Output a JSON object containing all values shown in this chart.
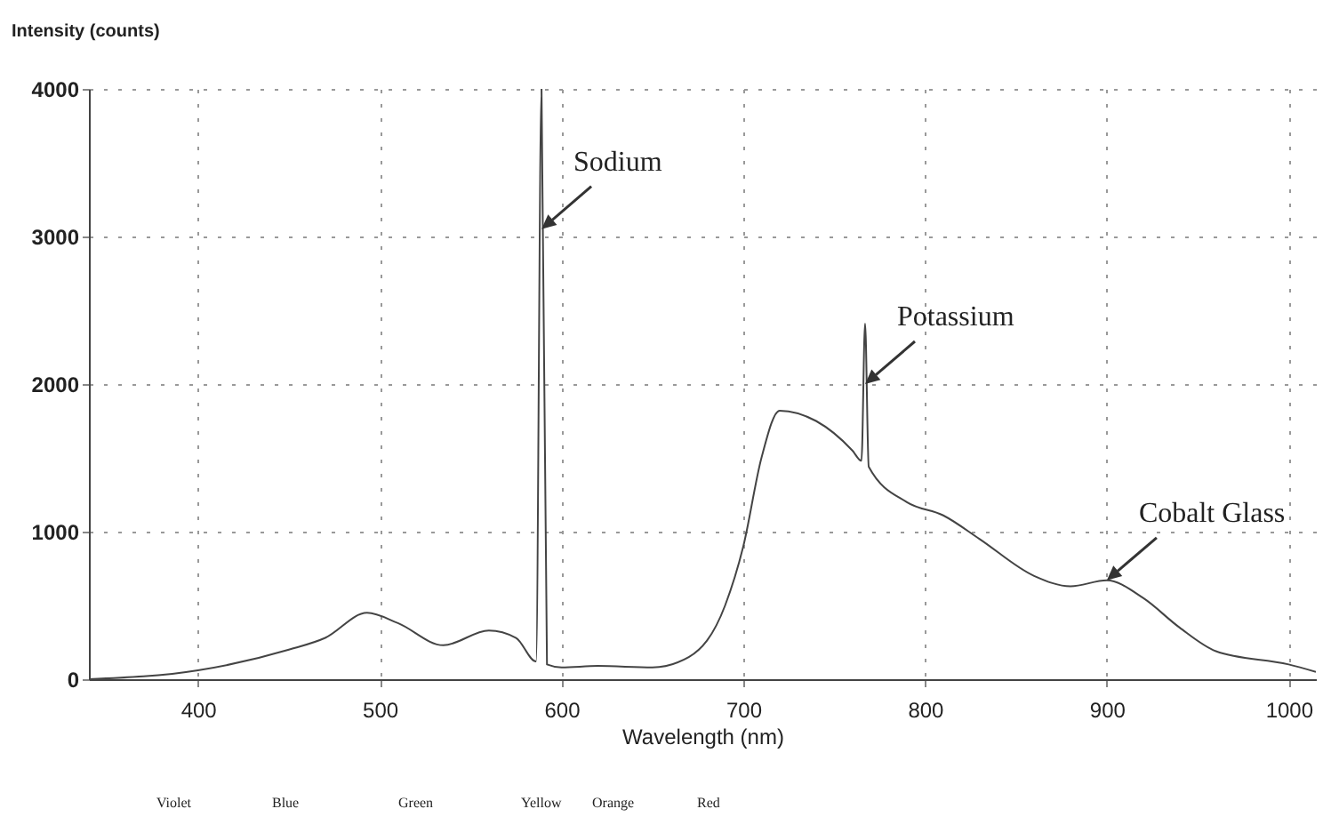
{
  "chart_data": {
    "type": "line",
    "xlabel": "Wavelength (nm)",
    "ylabel": "Intensity (counts)",
    "x": [
      340,
      400,
      450,
      470,
      493,
      510,
      535,
      560,
      575,
      586,
      589,
      592,
      600,
      620,
      650,
      670,
      690,
      700,
      710,
      720,
      740,
      760,
      765,
      767,
      769,
      790,
      810,
      830,
      860,
      880,
      900,
      920,
      940,
      960,
      1000,
      1015
    ],
    "series": [
      {
        "color": "#444444",
        "values": [
          0,
          60,
          200,
          280,
          450,
          380,
          230,
          330,
          280,
          120,
          4000,
          100,
          80,
          90,
          80,
          150,
          500,
          900,
          1500,
          1820,
          1750,
          1550,
          1480,
          2410,
          1440,
          1200,
          1110,
          950,
          700,
          630,
          670,
          550,
          350,
          190,
          100,
          50
        ]
      }
    ],
    "xlim": [
      340,
      1015
    ],
    "ylim": [
      0,
      4000
    ],
    "xticks": [
      400,
      500,
      600,
      700,
      800,
      900,
      1000
    ],
    "yticks": [
      0,
      1000,
      2000,
      3000,
      4000
    ],
    "grid": true,
    "line_style": "solid",
    "marker": "none",
    "annotations": [
      {
        "text": "Sodium",
        "x": 589,
        "y": 3050
      },
      {
        "text": "Potassium",
        "x": 767,
        "y": 2000
      },
      {
        "text": "Cobalt Glass",
        "x": 900,
        "y": 670
      },
      "Violet",
      "Blue",
      "Green",
      "Yellow",
      "Orange",
      "Red"
    ]
  }
}
